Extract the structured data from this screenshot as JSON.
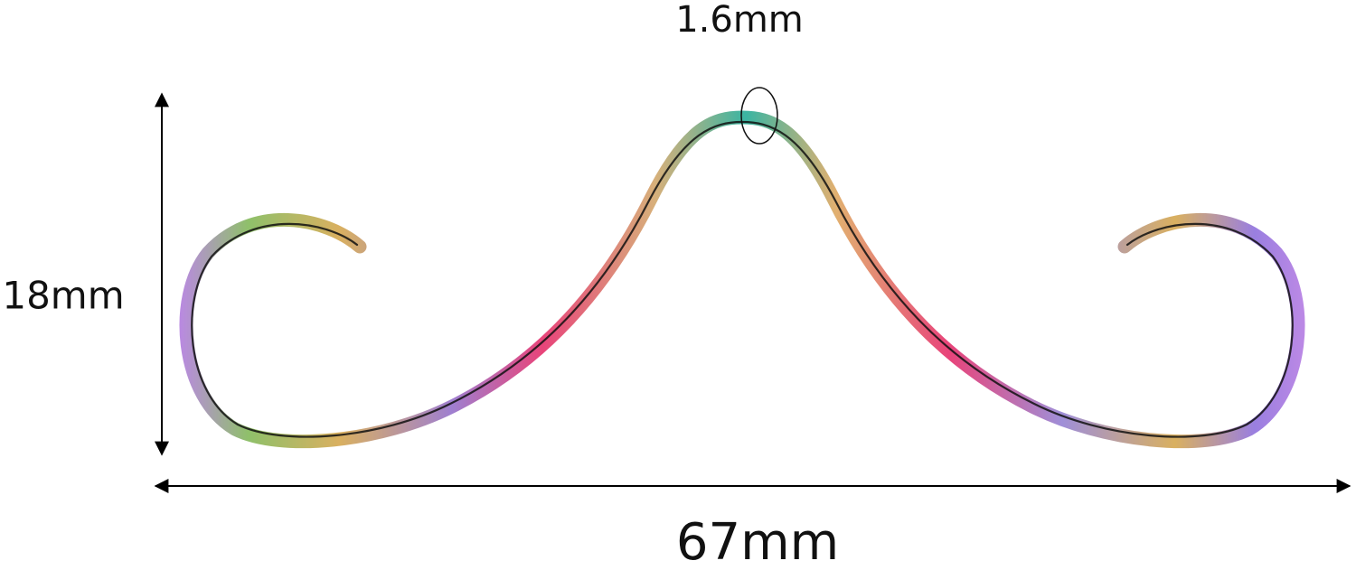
{
  "dimensions": {
    "thickness": "1.6mm",
    "height": "18mm",
    "width": "67mm"
  }
}
